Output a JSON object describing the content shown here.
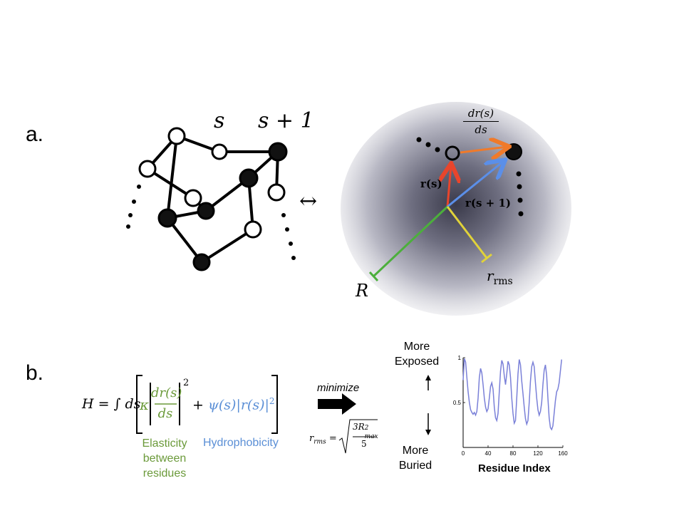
{
  "panel_a": {
    "label": "a.",
    "s_label": "s",
    "s1_label": "s + 1",
    "arrow_symbol": "↔",
    "dr_num": "dr(s)",
    "dr_den": "ds",
    "rs_label": "r(s)",
    "rs1_label": "r(s + 1)",
    "R_label": "R",
    "rrms_label": "r",
    "rrms_sub": "rms",
    "colors": {
      "red_vector": "#e8452c",
      "orange_vector": "#f07a2a",
      "blue_vector": "#5b8fe8",
      "green_radius": "#4caf3c",
      "yellow_rms": "#e0d23a"
    }
  },
  "panel_b": {
    "label": "b.",
    "H": "H = ∫ ds",
    "kappa": "κ",
    "frac_num": "dr(s)",
    "frac_den": "ds",
    "exp2": "2",
    "plus_term": "+ ψ(s)|r(s)|",
    "exp2b": "2",
    "elasticity": [
      "Elasticity",
      "between",
      "residues"
    ],
    "hydrophobicity": "Hydrophobicity",
    "minimize": "minimize",
    "rrms_lhs": "r",
    "rrms_lhs_sub": "rms",
    "rrms_eq": "=",
    "rrms_num": "3R",
    "rrms_num_sup": "2",
    "rrms_num_sub": "max",
    "rrms_den": "5",
    "more_exposed": [
      "More",
      "Exposed"
    ],
    "more_buried": [
      "More",
      "Buried"
    ],
    "colors": {
      "elastic": "#6b9a3a",
      "hydro": "#5b8fd6",
      "line": "#7a80d8"
    }
  },
  "chart_data": {
    "type": "line",
    "xlabel": "Residue Index",
    "ylabel": "",
    "x_ticks": [
      "0",
      "40",
      "80",
      "120",
      "160"
    ],
    "y_ticks": [
      "0.5",
      "1"
    ],
    "xlim": [
      0,
      160
    ],
    "ylim": [
      0,
      1
    ],
    "series": [
      {
        "x": [
          0,
          2,
          4,
          6,
          8,
          10,
          12,
          14,
          16,
          18,
          20,
          22,
          24,
          26,
          28,
          30,
          32,
          34,
          36,
          38,
          40,
          42,
          44,
          46,
          48,
          50,
          52,
          54,
          56,
          58,
          60,
          62,
          64,
          66,
          68,
          70,
          72,
          74,
          76,
          78,
          80,
          82,
          84,
          86,
          88,
          90,
          92,
          94,
          96,
          98,
          100,
          102,
          104,
          106,
          108,
          110,
          112,
          114,
          116,
          118,
          120,
          122,
          124,
          126,
          128,
          130,
          132,
          134,
          136,
          138,
          140,
          142,
          144,
          146,
          148,
          150,
          152,
          154,
          156,
          158
        ],
        "y": [
          0.75,
          0.99,
          0.95,
          0.78,
          0.62,
          0.5,
          0.42,
          0.39,
          0.37,
          0.39,
          0.36,
          0.4,
          0.55,
          0.78,
          0.88,
          0.83,
          0.7,
          0.55,
          0.45,
          0.4,
          0.43,
          0.55,
          0.68,
          0.72,
          0.65,
          0.45,
          0.33,
          0.3,
          0.38,
          0.62,
          0.85,
          0.97,
          0.93,
          0.8,
          0.7,
          0.82,
          0.96,
          0.92,
          0.78,
          0.55,
          0.38,
          0.27,
          0.3,
          0.55,
          0.82,
          0.98,
          0.92,
          0.74,
          0.6,
          0.45,
          0.32,
          0.26,
          0.3,
          0.5,
          0.74,
          0.9,
          0.95,
          0.9,
          0.72,
          0.55,
          0.42,
          0.36,
          0.4,
          0.5,
          0.7,
          0.86,
          0.92,
          0.8,
          0.55,
          0.33,
          0.22,
          0.2,
          0.24,
          0.38,
          0.52,
          0.62,
          0.65,
          0.72,
          0.85,
          0.98
        ]
      }
    ]
  }
}
